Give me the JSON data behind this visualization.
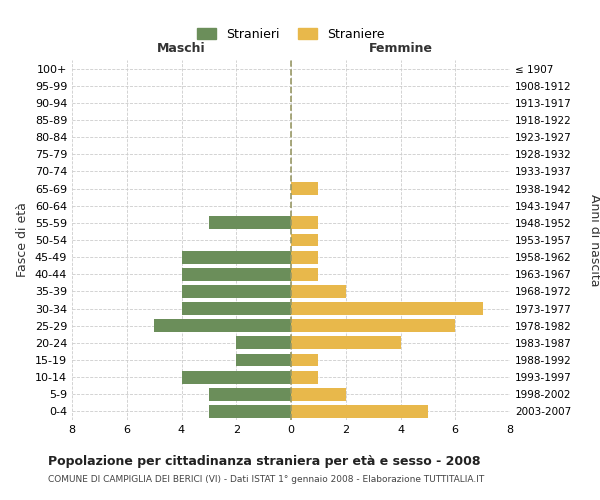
{
  "age_groups": [
    "100+",
    "95-99",
    "90-94",
    "85-89",
    "80-84",
    "75-79",
    "70-74",
    "65-69",
    "60-64",
    "55-59",
    "50-54",
    "45-49",
    "40-44",
    "35-39",
    "30-34",
    "25-29",
    "20-24",
    "15-19",
    "10-14",
    "5-9",
    "0-4"
  ],
  "birth_years": [
    "≤ 1907",
    "1908-1912",
    "1913-1917",
    "1918-1922",
    "1923-1927",
    "1928-1932",
    "1933-1937",
    "1938-1942",
    "1943-1947",
    "1948-1952",
    "1953-1957",
    "1958-1962",
    "1963-1967",
    "1968-1972",
    "1973-1977",
    "1978-1982",
    "1983-1987",
    "1988-1992",
    "1993-1997",
    "1998-2002",
    "2003-2007"
  ],
  "maschi": [
    0,
    0,
    0,
    0,
    0,
    0,
    0,
    0,
    0,
    3,
    0,
    4,
    4,
    4,
    4,
    5,
    2,
    2,
    4,
    3,
    3
  ],
  "femmine": [
    0,
    0,
    0,
    0,
    0,
    0,
    0,
    1,
    0,
    1,
    1,
    1,
    1,
    2,
    7,
    6,
    4,
    1,
    1,
    2,
    5
  ],
  "maschi_color": "#6B8E5A",
  "femmine_color": "#E8B84B",
  "title": "Popolazione per cittadinanza straniera per età e sesso - 2008",
  "subtitle": "COMUNE DI CAMPIGLIA DEI BERICI (VI) - Dati ISTAT 1° gennaio 2008 - Elaborazione TUTTITALIA.IT",
  "xlabel_left": "Maschi",
  "xlabel_right": "Femmine",
  "ylabel": "Fasce di età",
  "ylabel_right": "Anni di nascita",
  "legend_maschi": "Stranieri",
  "legend_femmine": "Straniere",
  "xlim": 8,
  "background_color": "#ffffff",
  "grid_color": "#cccccc"
}
